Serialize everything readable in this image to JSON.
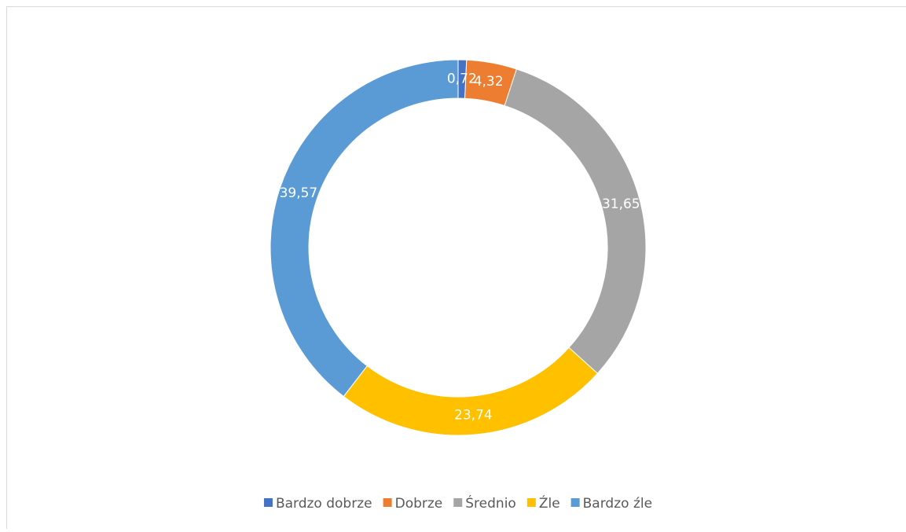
{
  "chart_data": {
    "type": "donut",
    "categories": [
      "Bardzo dobrze",
      "Dobrze",
      "Średnio",
      "Źle",
      "Bardzo źle"
    ],
    "values": [
      0.72,
      4.32,
      31.65,
      23.74,
      39.57
    ],
    "value_labels": [
      "0,72",
      "4,32",
      "31,65",
      "23,74",
      "39,57"
    ],
    "colors": [
      "#4472c4",
      "#ed7d31",
      "#a5a5a5",
      "#ffc000",
      "#5b9bd5"
    ],
    "legend": "bottom"
  }
}
